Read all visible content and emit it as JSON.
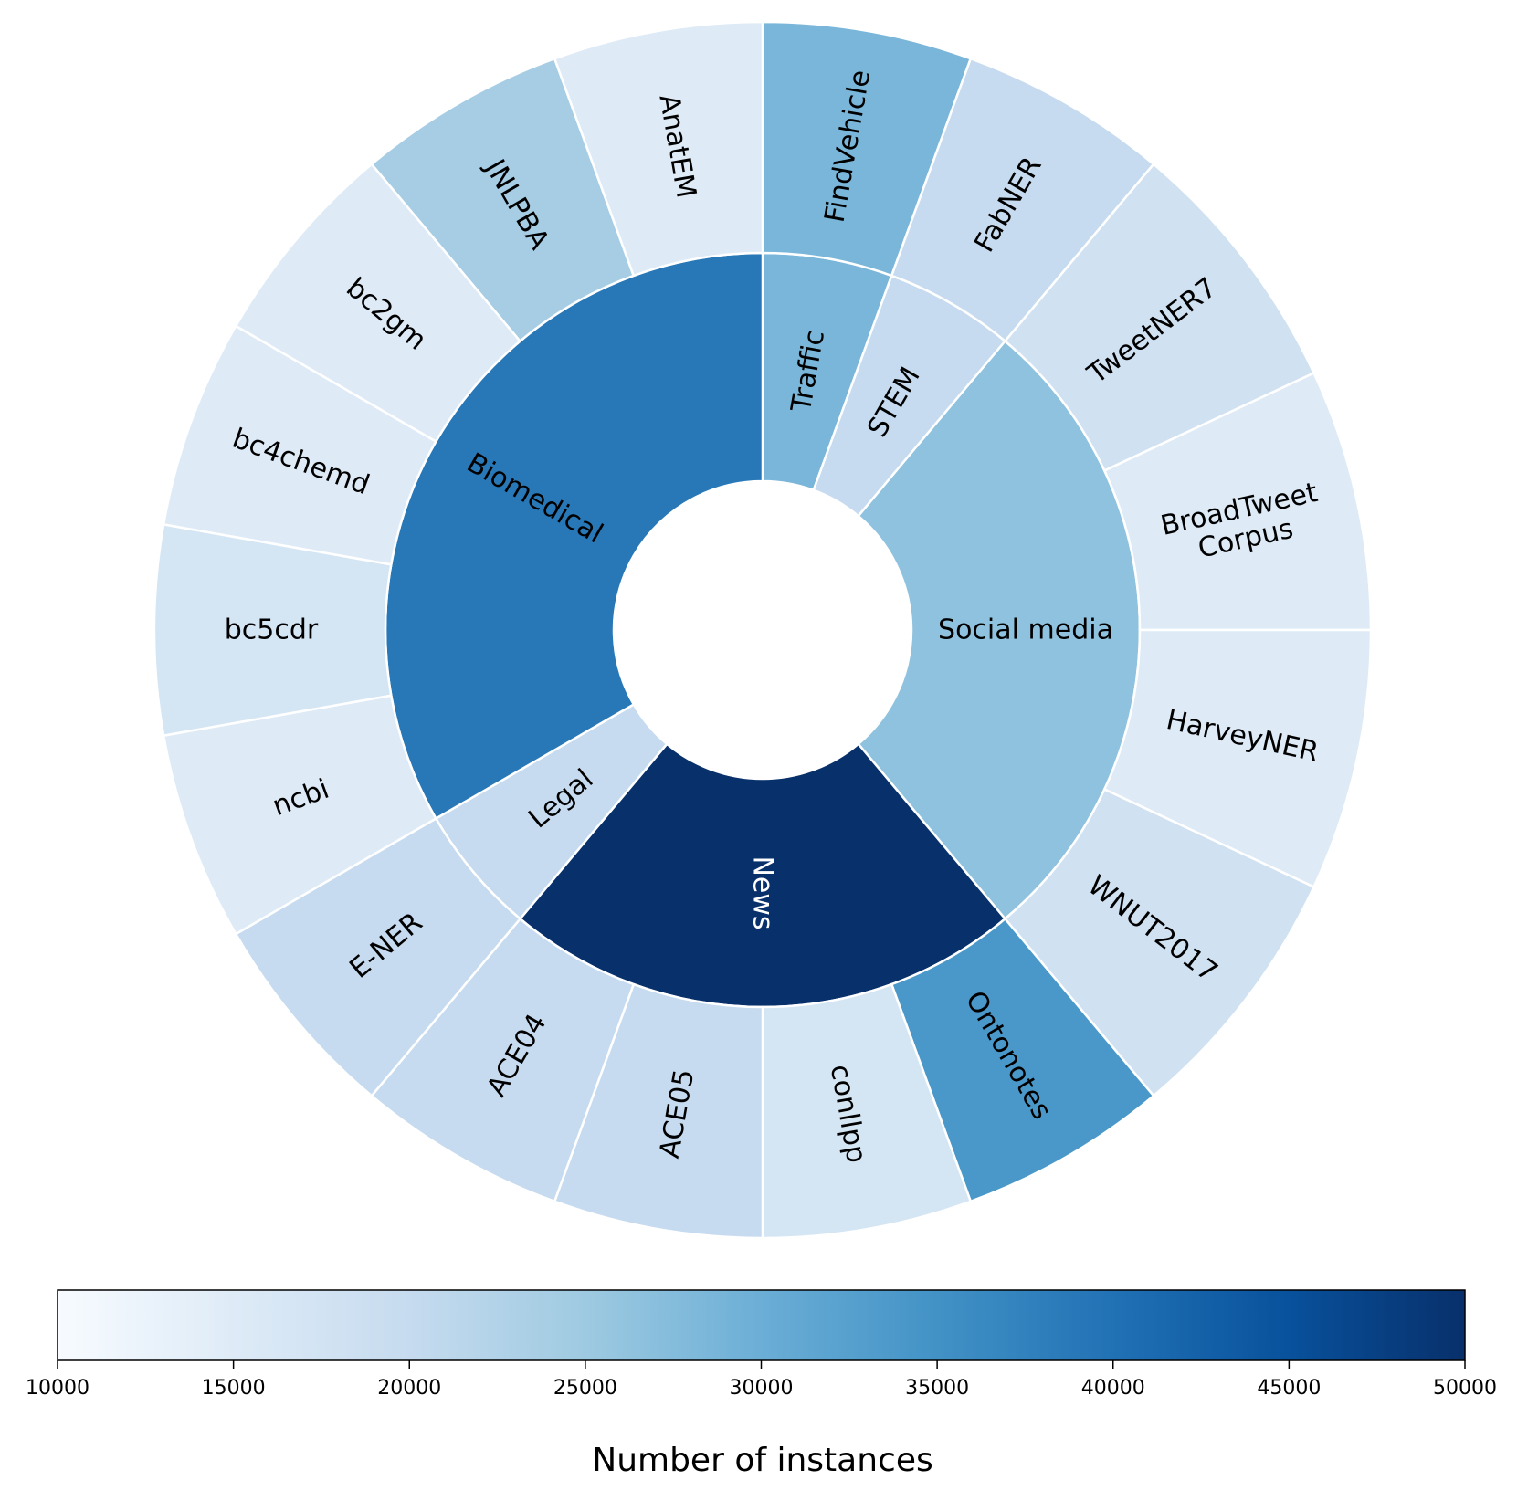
{
  "chart_data": {
    "type": "sunburst",
    "inner_ring": [
      {
        "name": "Traffic",
        "value": 28500,
        "span_deg": 20.0
      },
      {
        "name": "STEM",
        "value": 20000,
        "span_deg": 20.0
      },
      {
        "name": "Social media",
        "value": 26500,
        "span_deg": 100.0
      },
      {
        "name": "News",
        "value": 50000,
        "span_deg": 80.0
      },
      {
        "name": "Legal",
        "value": 20000,
        "span_deg": 20.0
      },
      {
        "name": "Biomedical",
        "value": 39000,
        "span_deg": 120.0
      }
    ],
    "outer_ring": [
      {
        "name": "FindVehicle",
        "parent": "Traffic",
        "value": 28500
      },
      {
        "name": "FabNER",
        "parent": "STEM",
        "value": 20000
      },
      {
        "name": "TweetNER7",
        "parent": "Social media",
        "value": 18000
      },
      {
        "name": "BroadTweet Corpus",
        "parent": "Social media",
        "value": 15000
      },
      {
        "name": "HarveyNER",
        "parent": "Social media",
        "value": 15000
      },
      {
        "name": "WNUT2017",
        "parent": "Social media",
        "value": 18000
      },
      {
        "name": "Ontonotes",
        "parent": "News",
        "value": 34000
      },
      {
        "name": "conllpp",
        "parent": "News",
        "value": 17000
      },
      {
        "name": "ACE05",
        "parent": "News",
        "value": 20000
      },
      {
        "name": "ACE04",
        "parent": "News",
        "value": 20000
      },
      {
        "name": "E-NER",
        "parent": "Legal",
        "value": 20000
      },
      {
        "name": "ncbi",
        "parent": "Biomedical",
        "value": 15000
      },
      {
        "name": "bc5cdr",
        "parent": "Biomedical",
        "value": 17000
      },
      {
        "name": "bc4chemd",
        "parent": "Biomedical",
        "value": 15000
      },
      {
        "name": "bc2gm",
        "parent": "Biomedical",
        "value": 15000
      },
      {
        "name": "JNLPBA",
        "parent": "Biomedical",
        "value": 24000
      },
      {
        "name": "AnatEM",
        "parent": "Biomedical",
        "value": 15000
      }
    ],
    "colorbar": {
      "label": "Number of instances",
      "min": 10000,
      "max": 50000,
      "ticks": [
        "10000",
        "15000",
        "20000",
        "25000",
        "30000",
        "35000",
        "40000",
        "45000",
        "50000"
      ],
      "colormap": "Blues"
    }
  }
}
